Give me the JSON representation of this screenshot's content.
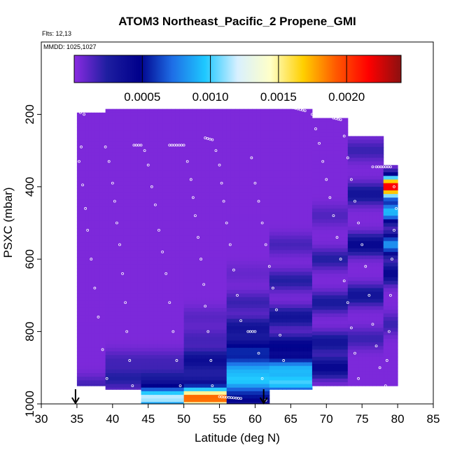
{
  "chart_data": {
    "type": "heatmap",
    "title": "ATOM3 Northeast_Pacific_2 Propene_GMI",
    "annotations": {
      "flights": "Flts: 12,13",
      "mmdd": "MMDD: 1025,1027"
    },
    "xlabel": "Latitude (deg N)",
    "ylabel": "PSXC (mbar)",
    "xlim": [
      30,
      85
    ],
    "ylim": [
      1000,
      0
    ],
    "x_ticks": [
      "30",
      "35",
      "40",
      "45",
      "50",
      "55",
      "60",
      "65",
      "70",
      "75",
      "80",
      "85"
    ],
    "y_ticks": [
      "200",
      "400",
      "600",
      "800",
      "1000"
    ],
    "colorbar": {
      "range": [
        0,
        0.0024
      ],
      "ticks": [
        "0.0005",
        "0.0010",
        "0.0015",
        "0.0020"
      ],
      "colors": [
        "#8a2be2",
        "#1e1ea0",
        "#00008b",
        "#1e6ee6",
        "#1ec8ff",
        "#d8f0ff",
        "#ffffc8",
        "#ffd000",
        "#ff5a00",
        "#ff0000",
        "#8b1010"
      ]
    },
    "arrows_latitude": [
      34.8,
      61.2
    ],
    "columns": [
      {
        "lat": [
          35,
          39
        ],
        "pmin": 195,
        "pmax": 950,
        "rows": [
          {
            "p": 950,
            "v": 0.00013
          }
        ]
      },
      {
        "lat": [
          39,
          44
        ],
        "pmin": 185,
        "pmax": 960,
        "rows": [
          {
            "p": 880,
            "v": 0.00012
          },
          {
            "p": 930,
            "v": 0.0002
          },
          {
            "p": 985,
            "v": 5e-05
          }
        ]
      },
      {
        "lat": [
          44,
          50
        ],
        "pmin": 185,
        "pmax": 1000,
        "rows": [
          {
            "p": 880,
            "v": 0.00012
          },
          {
            "p": 930,
            "v": 0.0002
          },
          {
            "p": 985,
            "v": 0.0011
          },
          {
            "p": 960,
            "v": 0.0001
          }
        ]
      },
      {
        "lat": [
          50,
          56
        ],
        "pmin": 185,
        "pmax": 1000,
        "rows": [
          {
            "p": 760,
            "v": 8e-05
          },
          {
            "p": 820,
            "v": 0.00012
          },
          {
            "p": 880,
            "v": 0.00035
          },
          {
            "p": 935,
            "v": 0.0002
          },
          {
            "p": 985,
            "v": 0.0019
          }
        ]
      },
      {
        "lat": [
          56,
          62
        ],
        "pmin": 185,
        "pmax": 1000,
        "rows": [
          {
            "p": 640,
            "v": 5e-05
          },
          {
            "p": 720,
            "v": 0.00015
          },
          {
            "p": 790,
            "v": 0.0003
          },
          {
            "p": 850,
            "v": 0.0005
          },
          {
            "p": 900,
            "v": 0.0007
          },
          {
            "p": 940,
            "v": 0.0008
          },
          {
            "p": 985,
            "v": 0.0004
          }
        ]
      },
      {
        "lat": [
          62,
          68
        ],
        "pmin": 185,
        "pmax": 960,
        "rows": [
          {
            "p": 560,
            "v": 0.00012
          },
          {
            "p": 660,
            "v": 0.0002
          },
          {
            "p": 760,
            "v": 0.0003
          },
          {
            "p": 840,
            "v": 0.00045
          },
          {
            "p": 900,
            "v": 0.0008
          },
          {
            "p": 945,
            "v": 0.0009
          }
        ]
      },
      {
        "lat": [
          68,
          73
        ],
        "pmin": 210,
        "pmax": 950,
        "rows": [
          {
            "p": 480,
            "v": 0.0001
          },
          {
            "p": 600,
            "v": 0.0002
          },
          {
            "p": 720,
            "v": 0.00025
          },
          {
            "p": 830,
            "v": 0.0003
          },
          {
            "p": 900,
            "v": 0.0004
          }
        ]
      },
      {
        "lat": [
          73,
          78
        ],
        "pmin": 260,
        "pmax": 950,
        "rows": [
          {
            "p": 300,
            "v": 0.00015
          },
          {
            "p": 420,
            "v": 0.0003
          },
          {
            "p": 560,
            "v": 0.0004
          },
          {
            "p": 700,
            "v": 0.0003
          },
          {
            "p": 820,
            "v": 0.00015
          }
        ]
      },
      {
        "lat": [
          78,
          80
        ],
        "pmin": 340,
        "pmax": 950,
        "rows": [
          {
            "p": 400,
            "v": 0.0022
          },
          {
            "p": 470,
            "v": 0.0009
          },
          {
            "p": 560,
            "v": 0.0008
          },
          {
            "p": 640,
            "v": 0.0004
          },
          {
            "p": 780,
            "v": 0.00015
          }
        ]
      }
    ]
  }
}
